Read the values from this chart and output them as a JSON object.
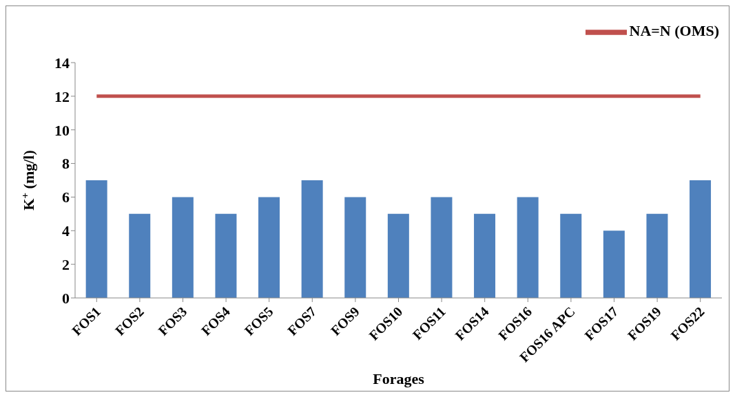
{
  "chart_data": {
    "type": "bar",
    "xlabel": "Forages",
    "ylabel": "K$^{+}$ (mg/l)",
    "categories": [
      "FOS1",
      "FOS2",
      "FOS3",
      "FOS4",
      "FOS5",
      "FOS7",
      "FOS9",
      "FOS10",
      "FOS11",
      "FOS14",
      "FOS16",
      "FOS16 APC",
      "FOS17",
      "FOS19",
      "FOS22"
    ],
    "series": [
      {
        "color": "#4f81bd",
        "values": [
          7,
          5,
          6,
          5,
          6,
          7,
          6,
          5,
          6,
          5,
          6,
          5,
          4,
          5,
          7
        ]
      },
      {
        "type": "line",
        "name": "NA=N (OMS)",
        "color": "#c0504d",
        "values": [
          12,
          12,
          12,
          12,
          12,
          12,
          12,
          12,
          12,
          12,
          12,
          12,
          12,
          12,
          12
        ],
        "marker": "none"
      }
    ],
    "ylim": [
      0,
      14
    ],
    "yticks": [
      0,
      2,
      4,
      6,
      8,
      10,
      12,
      14
    ],
    "grid": false,
    "legend": "top right"
  }
}
